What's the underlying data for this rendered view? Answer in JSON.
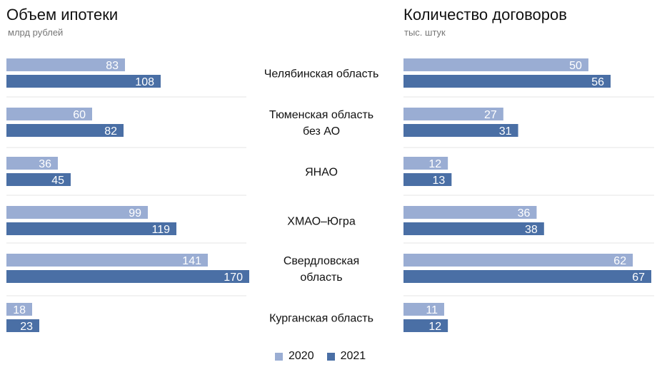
{
  "colors": {
    "y2020": "#9aadd3",
    "y2021": "#4a6fa5",
    "separator": "#e4e4e4"
  },
  "legend": [
    {
      "label": "2020",
      "color": "#9aadd3"
    },
    {
      "label": "2021",
      "color": "#4a6fa5"
    }
  ],
  "chart_data": [
    {
      "type": "bar",
      "orientation": "horizontal",
      "title": "Объем ипотеки",
      "subtitle": "млрд рублей",
      "categories": [
        [
          "Челябинская область"
        ],
        [
          "Тюменская область",
          "без АО"
        ],
        [
          "ЯНАО"
        ],
        [
          "ХМАО–Югра"
        ],
        [
          "Свердловская",
          "область"
        ],
        [
          "Курганская область"
        ]
      ],
      "series": [
        {
          "name": "2020",
          "values": [
            83,
            60,
            36,
            99,
            141,
            18
          ]
        },
        {
          "name": "2021",
          "values": [
            108,
            82,
            45,
            119,
            170,
            23
          ]
        }
      ],
      "xlim": [
        0,
        170
      ]
    },
    {
      "type": "bar",
      "orientation": "horizontal",
      "title": "Количество договоров",
      "subtitle": "тыс. штук",
      "categories": [
        [
          "Челябинская область"
        ],
        [
          "Тюменская область",
          "без АО"
        ],
        [
          "ЯНАО"
        ],
        [
          "ХМАО–Югра"
        ],
        [
          "Свердловская",
          "область"
        ],
        [
          "Курганская область"
        ]
      ],
      "series": [
        {
          "name": "2020",
          "values": [
            50,
            27,
            12,
            36,
            62,
            11
          ]
        },
        {
          "name": "2021",
          "values": [
            56,
            31,
            13,
            38,
            67,
            12
          ]
        }
      ],
      "xlim": [
        0,
        67
      ]
    }
  ]
}
